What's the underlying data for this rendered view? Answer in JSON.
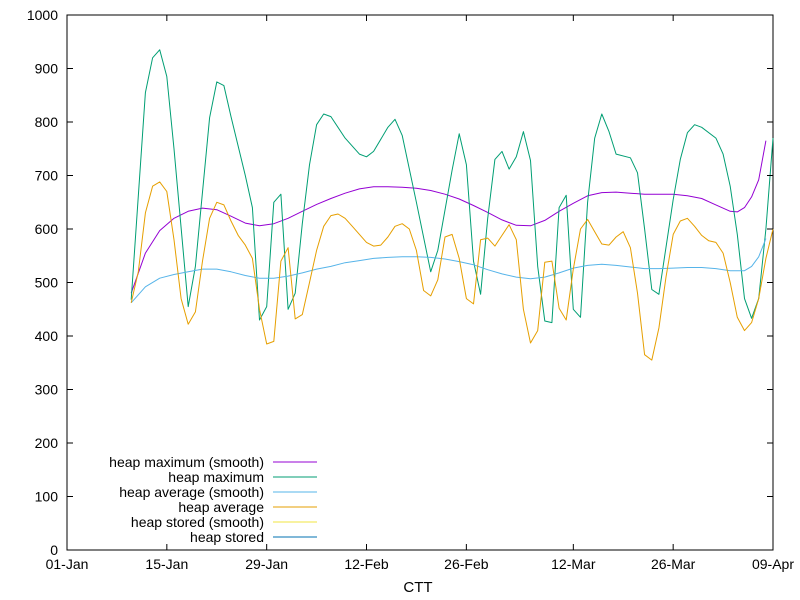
{
  "chart_data": {
    "type": "line",
    "title": "",
    "xlabel": "CTT",
    "ylabel": "",
    "x_axis_type": "date",
    "xlim": [
      "2024-01-01",
      "2024-04-09"
    ],
    "ylim": [
      0,
      1000
    ],
    "x_ticks": [
      {
        "date": "2024-01-01",
        "label": "01-Jan"
      },
      {
        "date": "2024-01-15",
        "label": "15-Jan"
      },
      {
        "date": "2024-01-29",
        "label": "29-Jan"
      },
      {
        "date": "2024-02-12",
        "label": "12-Feb"
      },
      {
        "date": "2024-02-26",
        "label": "26-Feb"
      },
      {
        "date": "2024-03-12",
        "label": "12-Mar"
      },
      {
        "date": "2024-03-26",
        "label": "26-Mar"
      },
      {
        "date": "2024-04-09",
        "label": "09-Apr"
      }
    ],
    "y_ticks": [
      0,
      100,
      200,
      300,
      400,
      500,
      600,
      700,
      800,
      900,
      1000
    ],
    "grid": false,
    "legend_position": "bottom-left",
    "series": [
      {
        "name": "heap maximum (smooth)",
        "color": "#9400d3",
        "points": [
          [
            "2024-01-10",
            480
          ],
          [
            "2024-01-12",
            555
          ],
          [
            "2024-01-14",
            597
          ],
          [
            "2024-01-16",
            620
          ],
          [
            "2024-01-18",
            633
          ],
          [
            "2024-01-20",
            639
          ],
          [
            "2024-01-22",
            636
          ],
          [
            "2024-01-24",
            624
          ],
          [
            "2024-01-26",
            611
          ],
          [
            "2024-01-28",
            606
          ],
          [
            "2024-01-30",
            610
          ],
          [
            "2024-02-01",
            620
          ],
          [
            "2024-02-03",
            633
          ],
          [
            "2024-02-05",
            646
          ],
          [
            "2024-02-07",
            657
          ],
          [
            "2024-02-09",
            667
          ],
          [
            "2024-02-11",
            675
          ],
          [
            "2024-02-13",
            679
          ],
          [
            "2024-02-15",
            679
          ],
          [
            "2024-02-17",
            678
          ],
          [
            "2024-02-19",
            676
          ],
          [
            "2024-02-21",
            672
          ],
          [
            "2024-02-23",
            665
          ],
          [
            "2024-02-25",
            656
          ],
          [
            "2024-02-27",
            644
          ],
          [
            "2024-02-29",
            631
          ],
          [
            "2024-03-02",
            617
          ],
          [
            "2024-03-04",
            607
          ],
          [
            "2024-03-06",
            606
          ],
          [
            "2024-03-08",
            616
          ],
          [
            "2024-03-10",
            633
          ],
          [
            "2024-03-12",
            648
          ],
          [
            "2024-03-14",
            662
          ],
          [
            "2024-03-16",
            668
          ],
          [
            "2024-03-18",
            669
          ],
          [
            "2024-03-20",
            667
          ],
          [
            "2024-03-22",
            665
          ],
          [
            "2024-03-24",
            665
          ],
          [
            "2024-03-26",
            665
          ],
          [
            "2024-03-28",
            662
          ],
          [
            "2024-03-30",
            657
          ],
          [
            "2024-04-01",
            645
          ],
          [
            "2024-04-03",
            633
          ],
          [
            "2024-04-04",
            632
          ],
          [
            "2024-04-05",
            640
          ],
          [
            "2024-04-06",
            660
          ],
          [
            "2024-04-07",
            692
          ],
          [
            "2024-04-08",
            765
          ]
        ]
      },
      {
        "name": "heap maximum",
        "color": "#009e73",
        "points": [
          [
            "2024-01-10",
            468
          ],
          [
            "2024-01-12",
            855
          ],
          [
            "2024-01-13",
            920
          ],
          [
            "2024-01-14",
            935
          ],
          [
            "2024-01-15",
            885
          ],
          [
            "2024-01-16",
            750
          ],
          [
            "2024-01-18",
            455
          ],
          [
            "2024-01-19",
            530
          ],
          [
            "2024-01-21",
            808
          ],
          [
            "2024-01-22",
            875
          ],
          [
            "2024-01-23",
            868
          ],
          [
            "2024-01-24",
            810
          ],
          [
            "2024-01-26",
            700
          ],
          [
            "2024-01-27",
            640
          ],
          [
            "2024-01-28",
            430
          ],
          [
            "2024-01-29",
            455
          ],
          [
            "2024-01-30",
            650
          ],
          [
            "2024-01-31",
            665
          ],
          [
            "2024-02-01",
            450
          ],
          [
            "2024-02-02",
            480
          ],
          [
            "2024-02-03",
            610
          ],
          [
            "2024-02-04",
            720
          ],
          [
            "2024-02-05",
            795
          ],
          [
            "2024-02-06",
            815
          ],
          [
            "2024-02-07",
            810
          ],
          [
            "2024-02-09",
            770
          ],
          [
            "2024-02-11",
            740
          ],
          [
            "2024-02-12",
            735
          ],
          [
            "2024-02-13",
            745
          ],
          [
            "2024-02-15",
            790
          ],
          [
            "2024-02-16",
            805
          ],
          [
            "2024-02-17",
            775
          ],
          [
            "2024-02-19",
            650
          ],
          [
            "2024-02-21",
            520
          ],
          [
            "2024-02-22",
            560
          ],
          [
            "2024-02-24",
            710
          ],
          [
            "2024-02-25",
            778
          ],
          [
            "2024-02-26",
            720
          ],
          [
            "2024-02-27",
            540
          ],
          [
            "2024-02-28",
            478
          ],
          [
            "2024-02-29",
            620
          ],
          [
            "2024-03-01",
            730
          ],
          [
            "2024-03-02",
            745
          ],
          [
            "2024-03-03",
            712
          ],
          [
            "2024-03-04",
            735
          ],
          [
            "2024-03-05",
            782
          ],
          [
            "2024-03-06",
            728
          ],
          [
            "2024-03-07",
            530
          ],
          [
            "2024-03-08",
            428
          ],
          [
            "2024-03-09",
            425
          ],
          [
            "2024-03-10",
            640
          ],
          [
            "2024-03-11",
            663
          ],
          [
            "2024-03-12",
            450
          ],
          [
            "2024-03-13",
            435
          ],
          [
            "2024-03-14",
            650
          ],
          [
            "2024-03-15",
            770
          ],
          [
            "2024-03-16",
            815
          ],
          [
            "2024-03-17",
            782
          ],
          [
            "2024-03-18",
            740
          ],
          [
            "2024-03-20",
            733
          ],
          [
            "2024-03-21",
            705
          ],
          [
            "2024-03-22",
            600
          ],
          [
            "2024-03-23",
            487
          ],
          [
            "2024-03-24",
            478
          ],
          [
            "2024-03-26",
            655
          ],
          [
            "2024-03-27",
            730
          ],
          [
            "2024-03-28",
            780
          ],
          [
            "2024-03-29",
            795
          ],
          [
            "2024-03-30",
            790
          ],
          [
            "2024-04-01",
            770
          ],
          [
            "2024-04-02",
            740
          ],
          [
            "2024-04-03",
            680
          ],
          [
            "2024-04-04",
            590
          ],
          [
            "2024-04-05",
            470
          ],
          [
            "2024-04-06",
            433
          ],
          [
            "2024-04-07",
            470
          ],
          [
            "2024-04-08",
            600
          ],
          [
            "2024-04-09",
            770
          ]
        ]
      },
      {
        "name": "heap average (smooth)",
        "color": "#56b4e9",
        "points": [
          [
            "2024-01-10",
            462
          ],
          [
            "2024-01-12",
            492
          ],
          [
            "2024-01-14",
            508
          ],
          [
            "2024-01-16",
            515
          ],
          [
            "2024-01-18",
            520
          ],
          [
            "2024-01-20",
            525
          ],
          [
            "2024-01-22",
            525
          ],
          [
            "2024-01-24",
            520
          ],
          [
            "2024-01-26",
            513
          ],
          [
            "2024-01-28",
            508
          ],
          [
            "2024-01-30",
            508
          ],
          [
            "2024-02-01",
            512
          ],
          [
            "2024-02-03",
            518
          ],
          [
            "2024-02-05",
            525
          ],
          [
            "2024-02-07",
            530
          ],
          [
            "2024-02-09",
            537
          ],
          [
            "2024-02-11",
            541
          ],
          [
            "2024-02-13",
            545
          ],
          [
            "2024-02-15",
            547
          ],
          [
            "2024-02-17",
            548
          ],
          [
            "2024-02-19",
            548
          ],
          [
            "2024-02-21",
            547
          ],
          [
            "2024-02-23",
            544
          ],
          [
            "2024-02-25",
            539
          ],
          [
            "2024-02-27",
            533
          ],
          [
            "2024-02-29",
            524
          ],
          [
            "2024-03-02",
            516
          ],
          [
            "2024-03-04",
            510
          ],
          [
            "2024-03-06",
            507
          ],
          [
            "2024-03-08",
            510
          ],
          [
            "2024-03-10",
            518
          ],
          [
            "2024-03-12",
            527
          ],
          [
            "2024-03-14",
            532
          ],
          [
            "2024-03-16",
            534
          ],
          [
            "2024-03-18",
            532
          ],
          [
            "2024-03-20",
            529
          ],
          [
            "2024-03-22",
            526
          ],
          [
            "2024-03-24",
            526
          ],
          [
            "2024-03-26",
            527
          ],
          [
            "2024-03-28",
            528
          ],
          [
            "2024-03-30",
            528
          ],
          [
            "2024-04-01",
            526
          ],
          [
            "2024-04-03",
            522
          ],
          [
            "2024-04-05",
            522
          ],
          [
            "2024-04-06",
            530
          ],
          [
            "2024-04-07",
            548
          ],
          [
            "2024-04-08",
            582
          ]
        ]
      },
      {
        "name": "heap average",
        "color": "#e69f00",
        "points": [
          [
            "2024-01-10",
            462
          ],
          [
            "2024-01-11",
            520
          ],
          [
            "2024-01-12",
            630
          ],
          [
            "2024-01-13",
            680
          ],
          [
            "2024-01-14",
            688
          ],
          [
            "2024-01-15",
            670
          ],
          [
            "2024-01-16",
            580
          ],
          [
            "2024-01-17",
            470
          ],
          [
            "2024-01-18",
            422
          ],
          [
            "2024-01-19",
            445
          ],
          [
            "2024-01-20",
            540
          ],
          [
            "2024-01-21",
            620
          ],
          [
            "2024-01-22",
            650
          ],
          [
            "2024-01-23",
            645
          ],
          [
            "2024-01-24",
            615
          ],
          [
            "2024-01-25",
            588
          ],
          [
            "2024-01-26",
            570
          ],
          [
            "2024-01-27",
            545
          ],
          [
            "2024-01-28",
            450
          ],
          [
            "2024-01-29",
            385
          ],
          [
            "2024-01-30",
            390
          ],
          [
            "2024-01-31",
            540
          ],
          [
            "2024-02-01",
            565
          ],
          [
            "2024-02-02",
            432
          ],
          [
            "2024-02-03",
            440
          ],
          [
            "2024-02-04",
            500
          ],
          [
            "2024-02-05",
            560
          ],
          [
            "2024-02-06",
            605
          ],
          [
            "2024-02-07",
            625
          ],
          [
            "2024-02-08",
            628
          ],
          [
            "2024-02-09",
            620
          ],
          [
            "2024-02-10",
            605
          ],
          [
            "2024-02-12",
            575
          ],
          [
            "2024-02-13",
            568
          ],
          [
            "2024-02-14",
            570
          ],
          [
            "2024-02-15",
            585
          ],
          [
            "2024-02-16",
            605
          ],
          [
            "2024-02-17",
            610
          ],
          [
            "2024-02-18",
            600
          ],
          [
            "2024-02-19",
            560
          ],
          [
            "2024-02-20",
            485
          ],
          [
            "2024-02-21",
            475
          ],
          [
            "2024-02-22",
            505
          ],
          [
            "2024-02-23",
            585
          ],
          [
            "2024-02-24",
            590
          ],
          [
            "2024-02-25",
            545
          ],
          [
            "2024-02-26",
            470
          ],
          [
            "2024-02-27",
            460
          ],
          [
            "2024-02-28",
            580
          ],
          [
            "2024-02-29",
            583
          ],
          [
            "2024-03-01",
            568
          ],
          [
            "2024-03-02",
            588
          ],
          [
            "2024-03-03",
            608
          ],
          [
            "2024-03-04",
            580
          ],
          [
            "2024-03-05",
            450
          ],
          [
            "2024-03-06",
            387
          ],
          [
            "2024-03-07",
            410
          ],
          [
            "2024-03-08",
            538
          ],
          [
            "2024-03-09",
            540
          ],
          [
            "2024-03-10",
            452
          ],
          [
            "2024-03-11",
            430
          ],
          [
            "2024-03-12",
            525
          ],
          [
            "2024-03-13",
            600
          ],
          [
            "2024-03-14",
            618
          ],
          [
            "2024-03-15",
            595
          ],
          [
            "2024-03-16",
            572
          ],
          [
            "2024-03-17",
            570
          ],
          [
            "2024-03-18",
            585
          ],
          [
            "2024-03-19",
            595
          ],
          [
            "2024-03-20",
            565
          ],
          [
            "2024-03-21",
            480
          ],
          [
            "2024-03-22",
            365
          ],
          [
            "2024-03-23",
            355
          ],
          [
            "2024-03-24",
            415
          ],
          [
            "2024-03-25",
            510
          ],
          [
            "2024-03-26",
            590
          ],
          [
            "2024-03-27",
            615
          ],
          [
            "2024-03-28",
            620
          ],
          [
            "2024-03-29",
            605
          ],
          [
            "2024-03-30",
            588
          ],
          [
            "2024-03-31",
            578
          ],
          [
            "2024-04-01",
            575
          ],
          [
            "2024-04-02",
            555
          ],
          [
            "2024-04-03",
            500
          ],
          [
            "2024-04-04",
            435
          ],
          [
            "2024-04-05",
            410
          ],
          [
            "2024-04-06",
            425
          ],
          [
            "2024-04-07",
            470
          ],
          [
            "2024-04-08",
            545
          ],
          [
            "2024-04-09",
            600
          ]
        ]
      },
      {
        "name": "heap stored (smooth)",
        "color": "#f0e442",
        "points": []
      },
      {
        "name": "heap stored",
        "color": "#0072b2",
        "points": []
      }
    ]
  }
}
